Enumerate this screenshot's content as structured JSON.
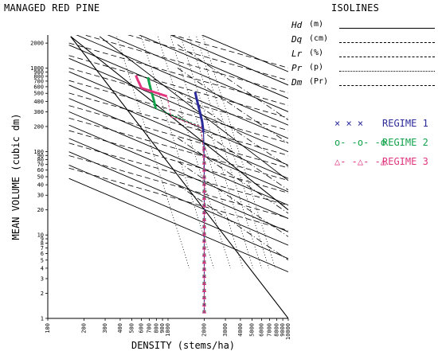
{
  "chart_data": {
    "type": "line",
    "title": "MANAGED RED PINE",
    "xlabel": "DENSITY (stems/ha)",
    "ylabel": "MEAN VOLUME (cubic dm)",
    "x_scale": "log",
    "y_scale": "log",
    "xlim": [
      100,
      10000
    ],
    "ylim": [
      1,
      2500
    ],
    "x_ticks": [
      100,
      200,
      300,
      400,
      500,
      600,
      700,
      800,
      900,
      1000,
      2000,
      3000,
      4000,
      5000,
      6000,
      7000,
      8000,
      9000,
      10000
    ],
    "y_ticks": [
      1,
      2,
      3,
      4,
      5,
      6,
      7,
      8,
      9,
      10,
      20,
      30,
      40,
      50,
      60,
      70,
      80,
      90,
      100,
      200,
      300,
      400,
      500,
      600,
      700,
      800,
      900,
      1000,
      2000
    ],
    "isolines_title": "ISOLINES",
    "isolines": [
      {
        "symbol": "Hd",
        "unit": "(m)",
        "style": "solid"
      },
      {
        "symbol": "Dq",
        "unit": "(cm)",
        "style": "dashed"
      },
      {
        "symbol": "Lr",
        "unit": "(%)",
        "style": "dashed-short"
      },
      {
        "symbol": "Pr",
        "unit": "(p)",
        "style": "dotted"
      },
      {
        "symbol": "Dm",
        "unit": "(Pr)",
        "style": "dash-dot"
      }
    ],
    "series": [
      {
        "name": "REGIME 1",
        "marker": "x",
        "marker_text": "× × ×",
        "color": "#2b2b9a",
        "x": [
          2000,
          2000,
          2000,
          2000,
          2000,
          2000,
          2000,
          1990,
          1970,
          1920,
          1840,
          1750,
          1680
        ],
        "y": [
          1.2,
          2,
          4,
          8,
          16,
          30,
          60,
          120,
          170,
          230,
          300,
          400,
          520
        ]
      },
      {
        "name": "REGIME 2",
        "marker": "o",
        "marker_text": "o- -o- -o",
        "color": "#13a34a",
        "x": [
          2000,
          2000,
          2000,
          2000,
          2000,
          2000,
          1960,
          1880,
          790,
          760,
          720,
          700,
          680
        ],
        "y": [
          1.2,
          2,
          4,
          8,
          16,
          40,
          110,
          200,
          330,
          420,
          550,
          650,
          780
        ]
      },
      {
        "name": "REGIME 3",
        "marker": "triangle",
        "marker_text": "△- -△- -△",
        "color": "#e0357f",
        "x": [
          2000,
          2000,
          2000,
          2000,
          2000,
          2000,
          1960,
          1880,
          1060,
          1030,
          1000,
          980,
          600,
          580,
          560,
          540
        ],
        "y": [
          1.2,
          2,
          4,
          8,
          16,
          40,
          110,
          200,
          260,
          320,
          400,
          460,
          580,
          650,
          720,
          820
        ]
      }
    ],
    "colors": {
      "regime1": "#2b2b9a",
      "regime2": "#13a34a",
      "regime3": "#e0357f"
    }
  }
}
